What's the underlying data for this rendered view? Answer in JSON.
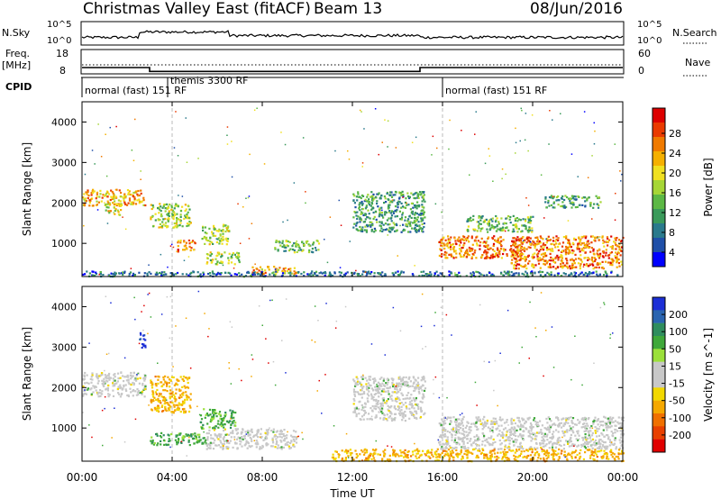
{
  "header": {
    "title": "Christmas Valley East (fitACF)",
    "beam": "Beam 13",
    "date": "08/Jun/2016"
  },
  "strip": {
    "nsky_label": "N.Sky",
    "nsky_ticks": [
      "10^5",
      "10^0"
    ],
    "nsky_right_ticks": [
      "10^5",
      "10^0"
    ],
    "nsearch_label": "N.Search",
    "freq_label": "Freq.",
    "freq_unit": "[MHz]",
    "freq_ticks": [
      "18",
      "8"
    ],
    "nave_ticks": [
      "60",
      "0"
    ],
    "nave_label": "Nave",
    "cpid_label": "CPID",
    "cpid_segments": [
      {
        "start_h": 0,
        "end_h": 3.8,
        "label": "normal (fast) 151 RF"
      },
      {
        "start_h": 3.8,
        "end_h": 16.0,
        "label": "themis 3300 RF"
      },
      {
        "start_h": 16.0,
        "end_h": 24,
        "label": "normal (fast) 151 RF"
      }
    ],
    "freq_mhz": [
      {
        "start_h": 0,
        "end_h": 3.0,
        "value": 10.6
      },
      {
        "start_h": 3.0,
        "end_h": 15.0,
        "value": 9.0
      },
      {
        "start_h": 15.0,
        "end_h": 24,
        "value": 10.6
      }
    ]
  },
  "x_axis": {
    "label": "Time UT",
    "ticks": [
      "00:00",
      "04:00",
      "08:00",
      "12:00",
      "16:00",
      "20:00",
      "00:00"
    ],
    "tick_hours": [
      0,
      4,
      8,
      12,
      16,
      20,
      24
    ]
  },
  "panels": [
    {
      "name": "power",
      "ylabel": "Slant Range [km]",
      "yticks": [
        "4000",
        "3000",
        "2000",
        "1000"
      ],
      "ytick_values": [
        4000,
        3000,
        2000,
        1000
      ],
      "colorbar_label": "Power [dB]",
      "colorbar_ticks": [
        "28",
        "24",
        "20",
        "16",
        "12",
        "8",
        "4"
      ],
      "colors": [
        "#0000ff",
        "#1f4fa8",
        "#2a7a8c",
        "#3a9a5a",
        "#5cb845",
        "#a6d636",
        "#f0e020",
        "#f5b000",
        "#f07a00",
        "#ea3a00",
        "#dd0000"
      ]
    },
    {
      "name": "velocity",
      "ylabel": "Slant Range [km]",
      "yticks": [
        "4000",
        "3000",
        "2000",
        "1000"
      ],
      "ytick_values": [
        4000,
        3000,
        2000,
        1000
      ],
      "colorbar_label": "Velocity [m s^-1]",
      "colorbar_ticks": [
        "200",
        "100",
        "50",
        "15",
        "-15",
        "-50",
        "-100",
        "-200"
      ],
      "colors": [
        "#1c2fd6",
        "#2a64b0",
        "#2f8d5e",
        "#3fa83a",
        "#9be03a",
        "#c8c8c8",
        "#c8c8c8",
        "#f2d800",
        "#f5a800",
        "#f07000",
        "#e84000",
        "#e00000"
      ]
    }
  ],
  "chart_data": {
    "type": "heatmap",
    "title": "Christmas Valley East (fitACF) Beam 13 08/Jun/2016",
    "xlabel": "Time UT",
    "ylabel": "Slant Range [km]",
    "xlim_hours": [
      0,
      24
    ],
    "ylim_km": [
      180,
      4500
    ],
    "grid": false,
    "dashed_markers_hours": [
      4.0,
      16.0
    ],
    "power_features": [
      {
        "t0": 0.0,
        "t1": 2.8,
        "r0": 1950,
        "r1": 2350,
        "db": 22
      },
      {
        "t0": 1.0,
        "t1": 1.8,
        "r0": 1700,
        "r1": 2000,
        "db": 20
      },
      {
        "t0": 3.0,
        "t1": 4.8,
        "r0": 1400,
        "r1": 2000,
        "db": 18
      },
      {
        "t0": 4.2,
        "t1": 5.0,
        "r0": 800,
        "r1": 1100,
        "db": 24
      },
      {
        "t0": 5.3,
        "t1": 6.5,
        "r0": 1000,
        "r1": 1500,
        "db": 16
      },
      {
        "t0": 5.5,
        "t1": 7.0,
        "r0": 500,
        "r1": 800,
        "db": 18
      },
      {
        "t0": 7.5,
        "t1": 9.5,
        "r0": 250,
        "r1": 450,
        "db": 22
      },
      {
        "t0": 8.5,
        "t1": 10.5,
        "r0": 800,
        "r1": 1100,
        "db": 14
      },
      {
        "t0": 12.0,
        "t1": 15.2,
        "r0": 1300,
        "r1": 2300,
        "db": 12
      },
      {
        "t0": 15.8,
        "t1": 19.8,
        "r0": 650,
        "r1": 1200,
        "db": 24
      },
      {
        "t0": 19.0,
        "t1": 24.0,
        "r0": 400,
        "r1": 1200,
        "db": 24
      },
      {
        "t0": 17.0,
        "t1": 20.0,
        "r0": 1300,
        "r1": 1700,
        "db": 14
      },
      {
        "t0": 20.5,
        "t1": 23.0,
        "r0": 1900,
        "r1": 2200,
        "db": 12
      },
      {
        "t0": 0.0,
        "t1": 24.0,
        "r0": 200,
        "r1": 330,
        "db": 10
      }
    ],
    "velocity_features": [
      {
        "t0": 0.0,
        "t1": 2.8,
        "r0": 1800,
        "r1": 2400,
        "v": 0
      },
      {
        "t0": 2.5,
        "t1": 2.8,
        "r0": 3000,
        "r1": 3400,
        "v": 200
      },
      {
        "t0": 3.0,
        "t1": 4.8,
        "r0": 1400,
        "r1": 2300,
        "v": -40
      },
      {
        "t0": 5.2,
        "t1": 6.8,
        "r0": 1000,
        "r1": 1500,
        "v": 50
      },
      {
        "t0": 3.0,
        "t1": 5.5,
        "r0": 600,
        "r1": 900,
        "v": 60
      },
      {
        "t0": 5.5,
        "t1": 9.5,
        "r0": 500,
        "r1": 1000,
        "v": 0
      },
      {
        "t0": 12.0,
        "t1": 15.2,
        "r0": 1200,
        "r1": 2300,
        "v": 0
      },
      {
        "t0": 15.8,
        "t1": 24.0,
        "r0": 500,
        "r1": 1300,
        "v": 0
      },
      {
        "t0": 11.0,
        "t1": 24.0,
        "r0": 200,
        "r1": 500,
        "v": -40
      }
    ]
  }
}
